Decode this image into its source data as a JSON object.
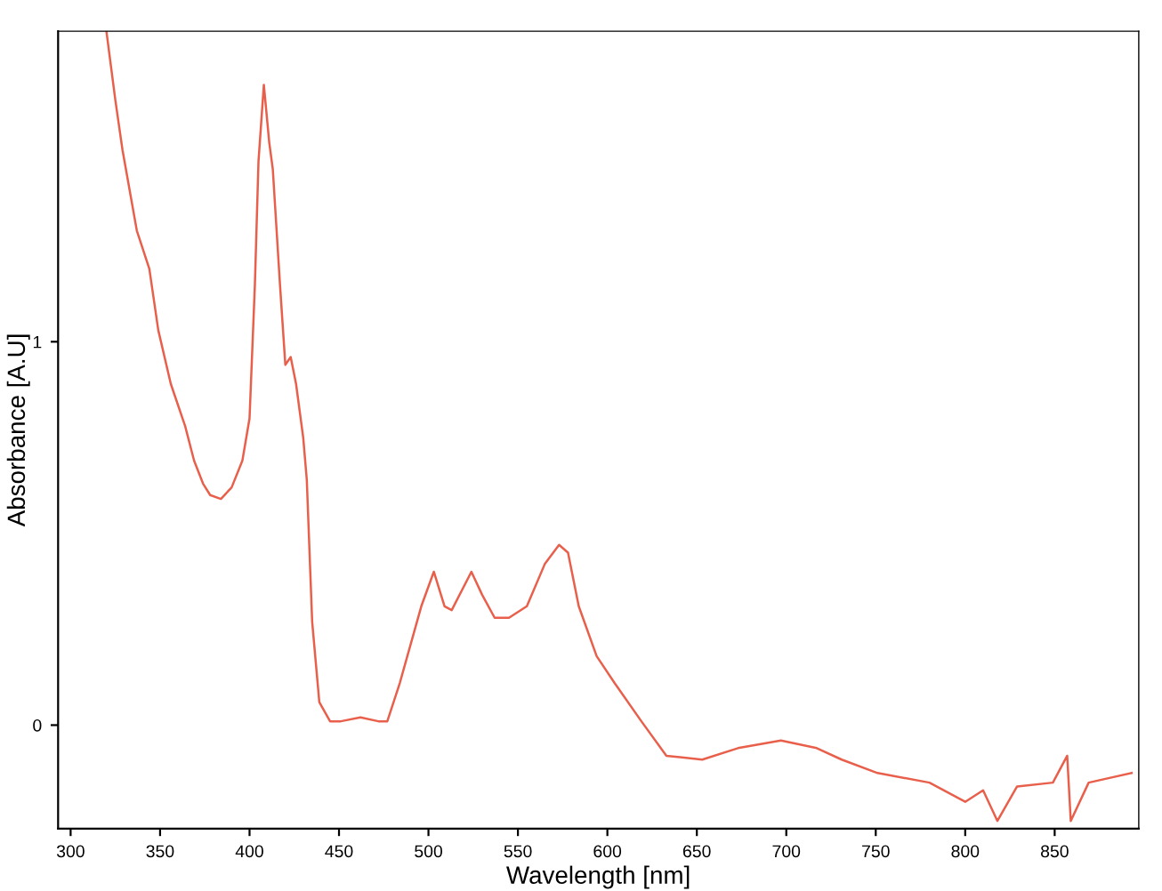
{
  "chart_data": {
    "type": "line",
    "xlabel": "Wavelength [nm]",
    "ylabel": "Absorbance [A.U]",
    "xlim": [
      293,
      897
    ],
    "ylim": [
      -0.27,
      1.81
    ],
    "xticks": [
      300,
      350,
      400,
      450,
      500,
      550,
      600,
      650,
      700,
      750,
      800,
      850
    ],
    "yticks": [
      0,
      1
    ],
    "grid": false,
    "legend": false,
    "marker": "none",
    "line_style": "solid",
    "series": [
      {
        "color": "#e8604c",
        "x": [
          320,
          325,
          329,
          337,
          344,
          349,
          356,
          364,
          369,
          374,
          378,
          384,
          390,
          396,
          400,
          403,
          405,
          408,
          411,
          413,
          417,
          420,
          423,
          426,
          430,
          432,
          435,
          439,
          445,
          451,
          462,
          472,
          477,
          484,
          496,
          503,
          509,
          513,
          524,
          530,
          537,
          545,
          555,
          565,
          573,
          578,
          584,
          594,
          604,
          619,
          633,
          653,
          673,
          697,
          717,
          731,
          751,
          780,
          800,
          810,
          818,
          829,
          849,
          857,
          859,
          869,
          893
        ],
        "values": [
          1.81,
          1.63,
          1.5,
          1.29,
          1.19,
          1.03,
          0.89,
          0.78,
          0.69,
          0.63,
          0.6,
          0.59,
          0.62,
          0.69,
          0.8,
          1.15,
          1.47,
          1.67,
          1.52,
          1.45,
          1.15,
          0.94,
          0.96,
          0.89,
          0.75,
          0.64,
          0.27,
          0.06,
          0.01,
          0.01,
          0.02,
          0.01,
          0.01,
          0.11,
          0.31,
          0.4,
          0.31,
          0.3,
          0.4,
          0.34,
          0.28,
          0.28,
          0.31,
          0.42,
          0.47,
          0.45,
          0.31,
          0.18,
          0.11,
          0.01,
          -0.08,
          -0.09,
          -0.06,
          -0.04,
          -0.06,
          -0.09,
          -0.125,
          -0.15,
          -0.2,
          -0.17,
          -0.25,
          -0.16,
          -0.15,
          -0.08,
          -0.25,
          -0.15,
          -0.125
        ]
      }
    ]
  }
}
